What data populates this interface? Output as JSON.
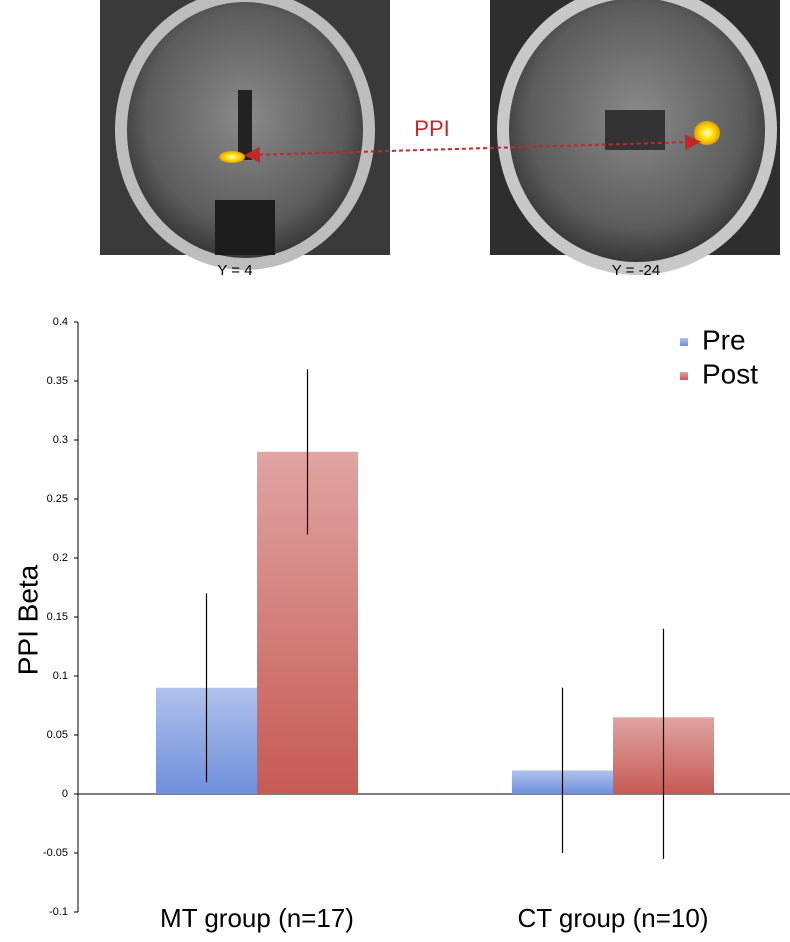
{
  "images": {
    "left_label": "Y = 4",
    "right_label": "Y = -24",
    "connection_label": "PPI"
  },
  "chart_data": {
    "type": "bar",
    "ylabel": "PPI Beta",
    "categories": [
      "MT group (n=17)",
      "CT group (n=10)"
    ],
    "series": [
      {
        "name": "Pre",
        "color": "#6f8fdc",
        "values": [
          0.09,
          0.02
        ],
        "err_lower": [
          0.01,
          -0.05
        ],
        "err_upper": [
          0.17,
          0.09
        ]
      },
      {
        "name": "Post",
        "color": "#c65a55",
        "values": [
          0.29,
          0.065
        ],
        "err_lower": [
          0.22,
          -0.055
        ],
        "err_upper": [
          0.36,
          0.14
        ]
      }
    ],
    "ylim": [
      -0.1,
      0.4
    ],
    "yticks": [
      -0.1,
      -0.05,
      0,
      0.05,
      0.1,
      0.15,
      0.2,
      0.25,
      0.3,
      0.35,
      0.4
    ],
    "grid": false,
    "legend": "upper right"
  }
}
